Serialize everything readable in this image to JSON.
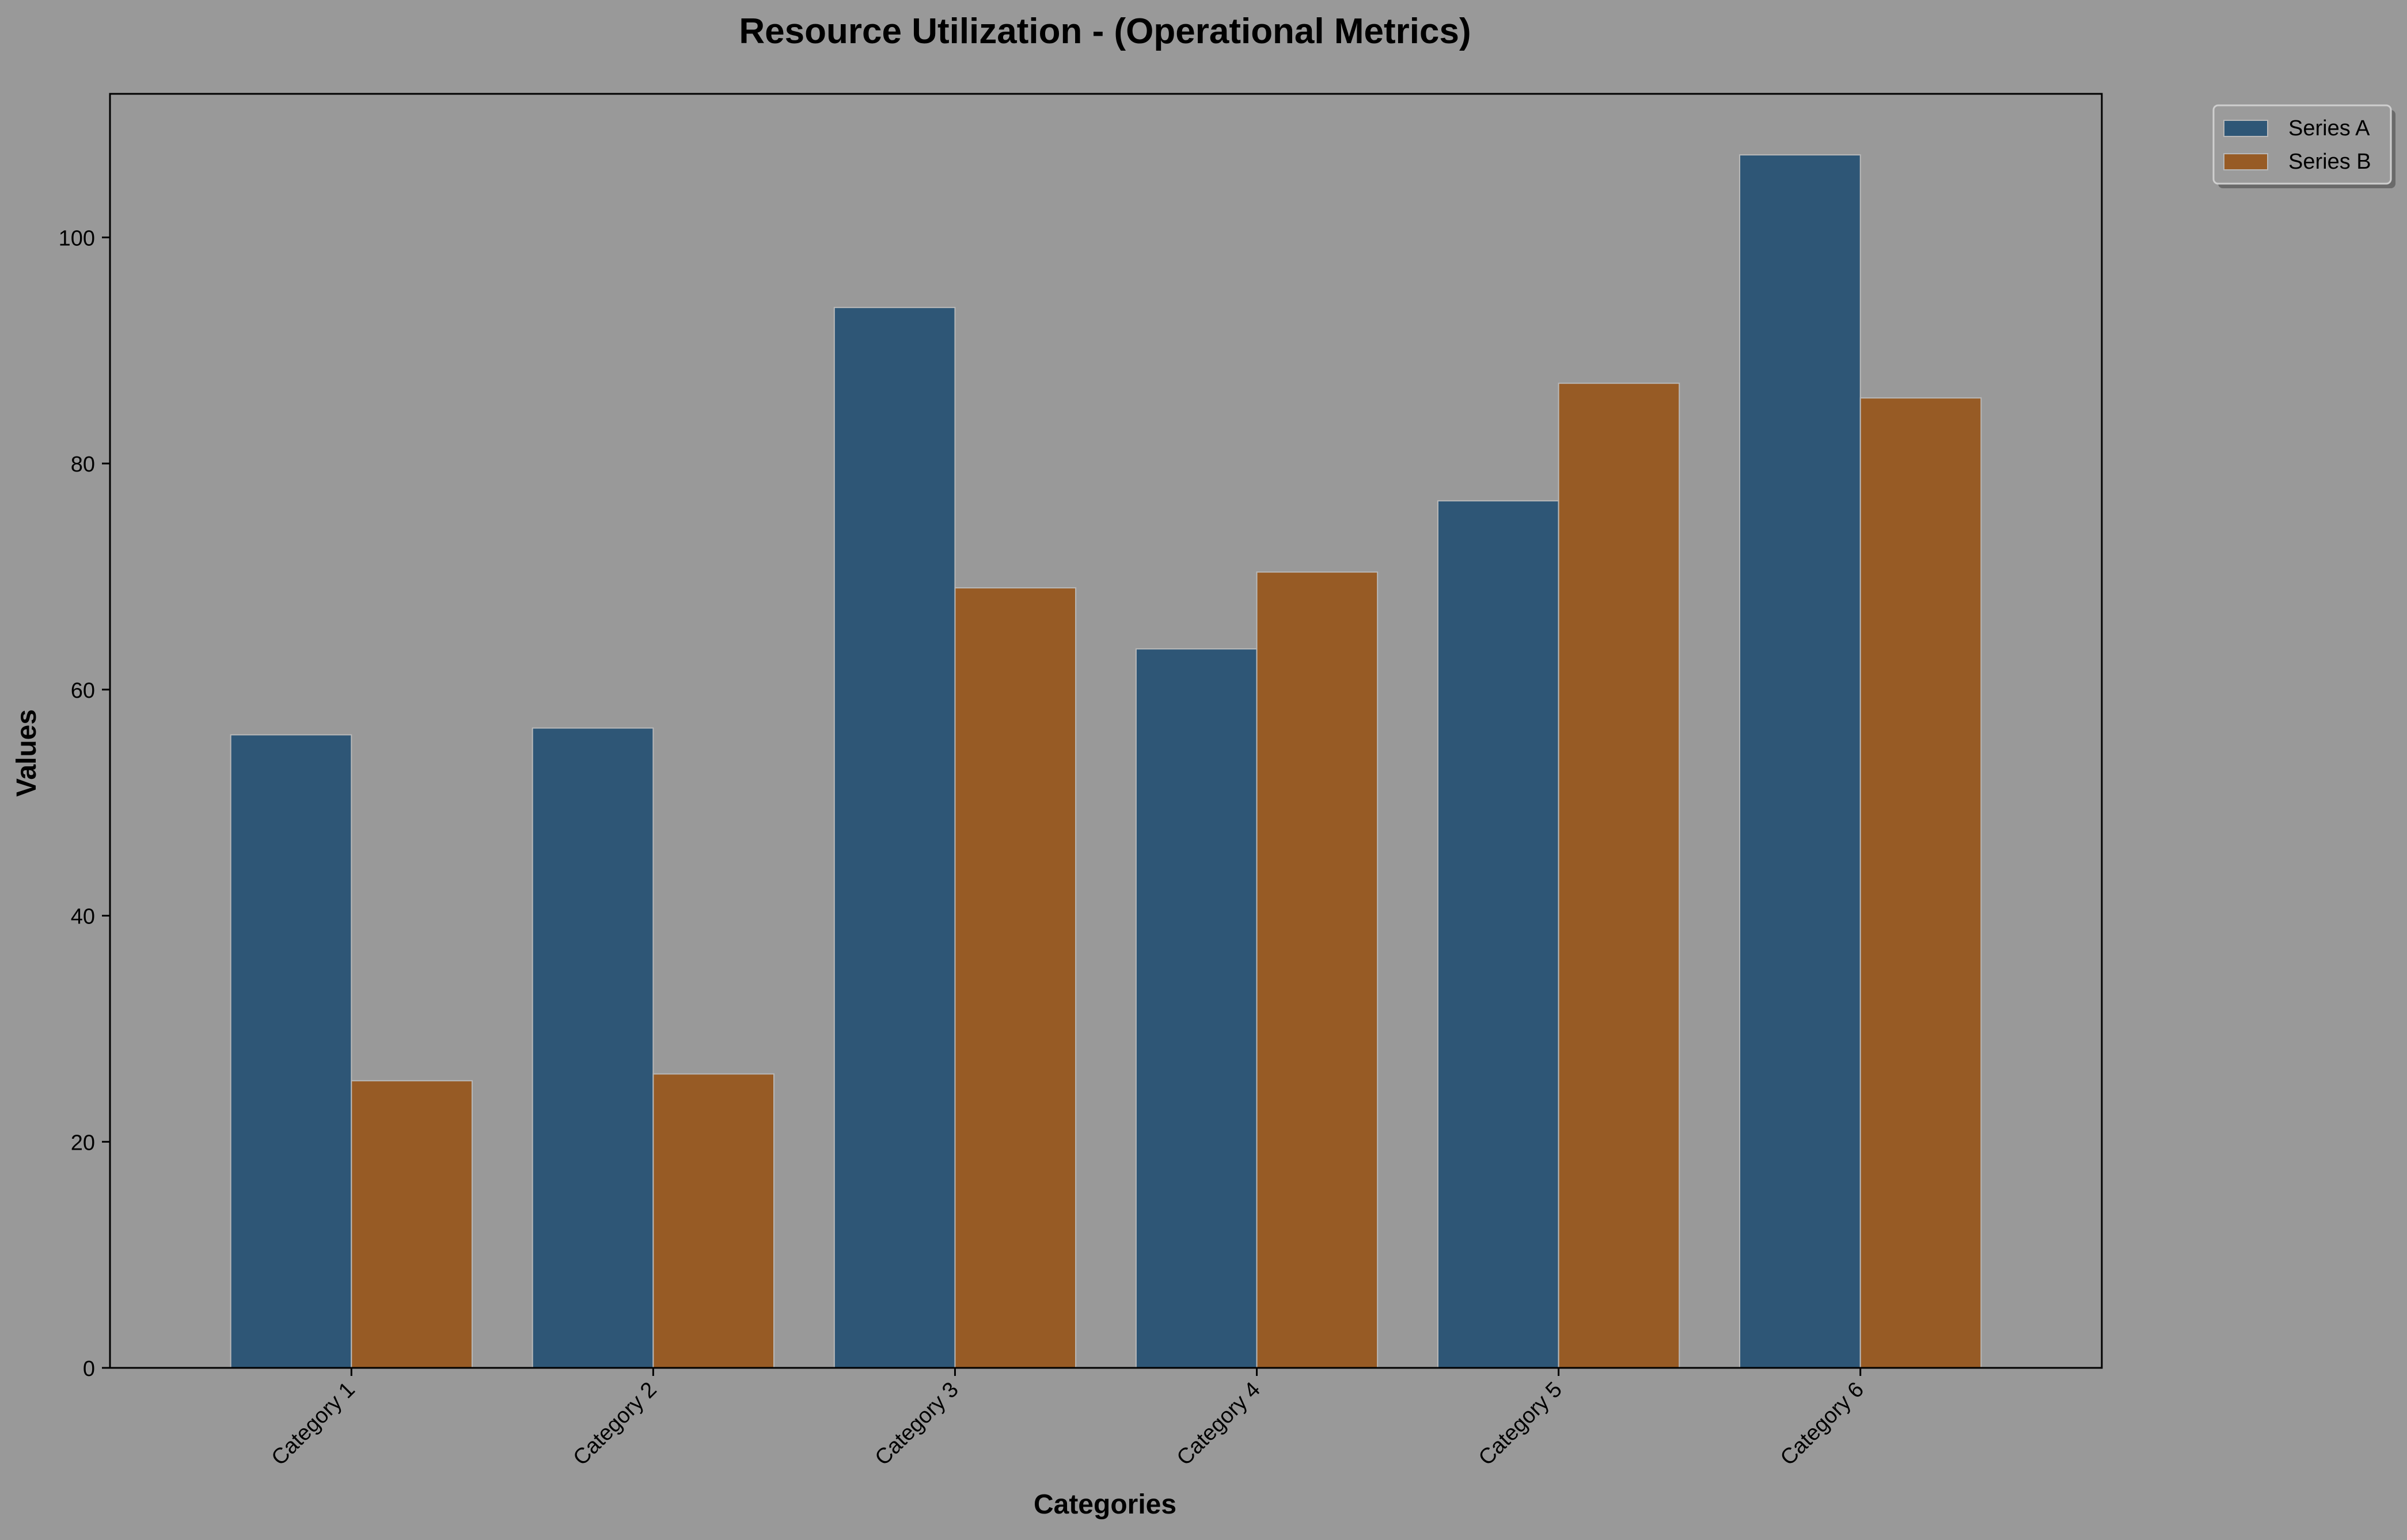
{
  "chart_data": {
    "type": "bar",
    "title": "Resource Utilization - (Operational Metrics)",
    "xlabel": "Categories",
    "ylabel": "Values",
    "categories": [
      "Category 1",
      "Category 2",
      "Category 3",
      "Category 4",
      "Category 5",
      "Category 6"
    ],
    "series": [
      {
        "name": "Series A",
        "color": "#2e5676",
        "values": [
          56.0,
          56.6,
          93.8,
          63.6,
          76.7,
          107.3
        ]
      },
      {
        "name": "Series B",
        "color": "#975b25",
        "values": [
          25.4,
          26.0,
          69.0,
          70.4,
          87.1,
          85.8
        ]
      }
    ],
    "ylim": [
      0,
      112.7
    ],
    "yticks": [
      0,
      20,
      40,
      60,
      80,
      100
    ],
    "grid": false,
    "legend_position": "outside-top-right",
    "background_color": "#999999",
    "axes_background_color": "#999999",
    "bar_edge_color": "#b8b8b8",
    "text_color": "#000000"
  }
}
